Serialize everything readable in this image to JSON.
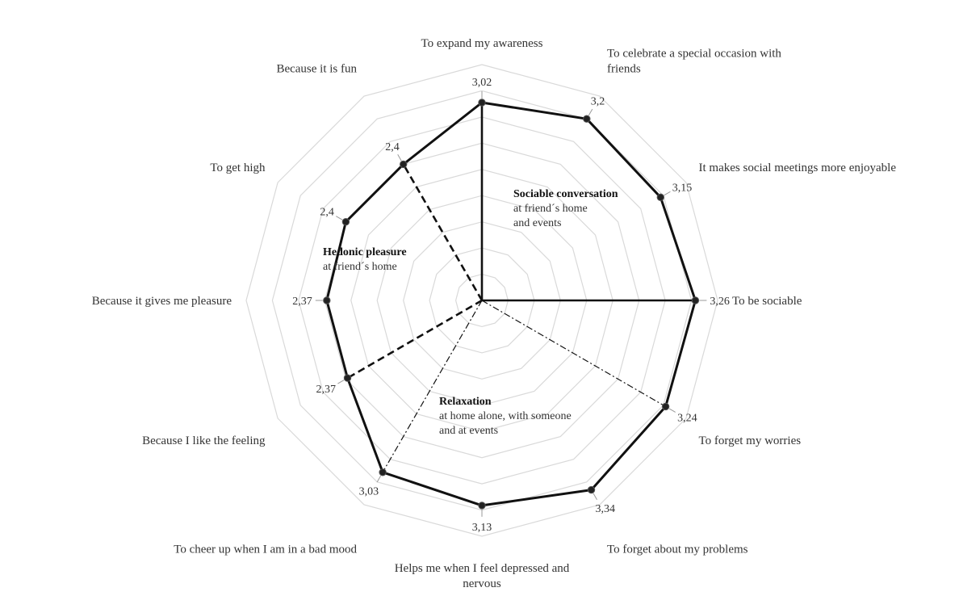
{
  "chart_data": {
    "type": "radar",
    "title": "",
    "rlim": [
      0,
      3.6
    ],
    "grid": true,
    "grid_rings": 9,
    "categories": [
      [
        "To expand my awareness"
      ],
      [
        "To celebrate a special occasion with",
        "friends"
      ],
      [
        "It makes social meetings more enjoyable"
      ],
      [
        "To be sociable"
      ],
      [
        "To forget my worries"
      ],
      [
        "To forget about my problems"
      ],
      [
        "Helps me when I feel depressed and",
        "nervous"
      ],
      [
        "To cheer up when I am in a bad mood"
      ],
      [
        "Because I like the feeling"
      ],
      [
        "Because it gives me pleasure"
      ],
      [
        "To get high"
      ],
      [
        "Because it is fun"
      ]
    ],
    "values": [
      3.02,
      3.2,
      3.15,
      3.26,
      3.24,
      3.34,
      3.13,
      3.03,
      2.37,
      2.37,
      2.4,
      2.4
    ],
    "value_labels": [
      "3,02",
      "3,2",
      "3,15",
      "3,26",
      "3,24",
      "3,34",
      "3,13",
      "3,03",
      "2,37",
      "2,37",
      "2,4",
      "2,4"
    ],
    "series_color": "#111111",
    "grid_color": "#d9d9d9",
    "groups": [
      {
        "name": "Sociable conversation",
        "lines": [
          "at friend´s home",
          "and events"
        ],
        "style": "solid",
        "from": 0,
        "to": 3
      },
      {
        "name": "Relaxation",
        "lines": [
          "at home alone, with someone",
          "and at events"
        ],
        "style": "dashdot",
        "from": 4,
        "to": 7
      },
      {
        "name": "Hedonic pleasure",
        "lines": [
          "at friend´s home"
        ],
        "style": "dashed",
        "from": 8,
        "to": 11
      }
    ]
  }
}
